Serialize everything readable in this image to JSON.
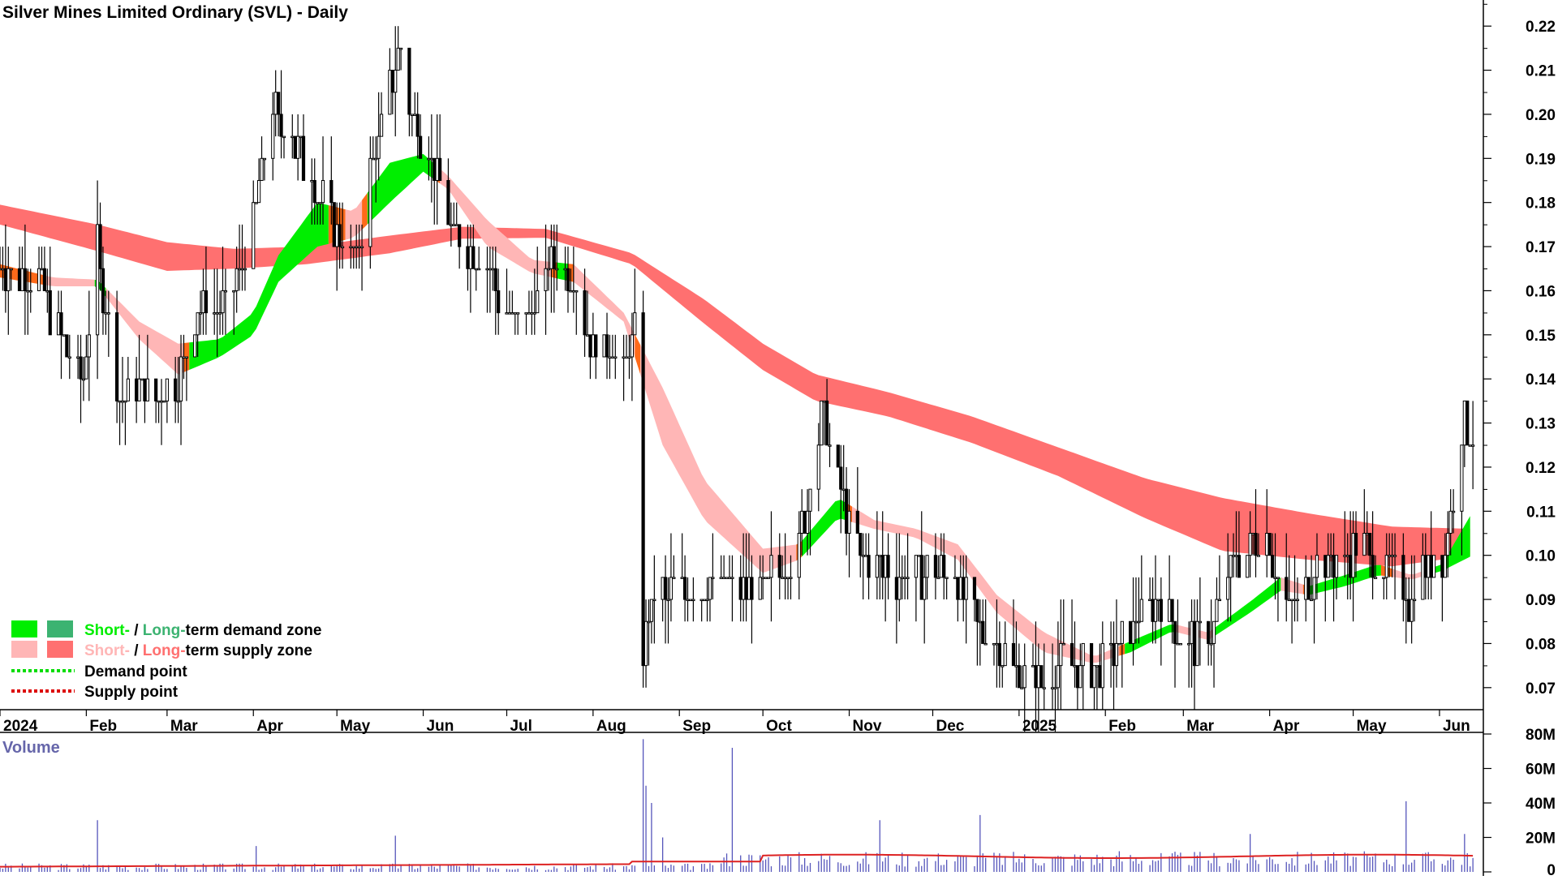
{
  "title": "Silver Mines Limited Ordinary (SVL) - Daily",
  "legend": {
    "demand_zone": {
      "short": "Short-",
      "sep": " / ",
      "long": "Long-",
      "rest": "term demand zone"
    },
    "supply_zone": {
      "short": "Short-",
      "sep": " / ",
      "long": "Long-",
      "rest": "term supply zone"
    },
    "demand_point": "Demand point",
    "supply_point": "Supply point"
  },
  "colors": {
    "short_demand": "#00ee00",
    "long_demand": "#3cb371",
    "short_supply": "#ffb6b6",
    "long_supply": "#ff7070",
    "transition_zone": "#ff6a1a",
    "demand_point": "#00dd00",
    "supply_point": "#dd0000",
    "volume_bar": "#5555bb",
    "volume_avg": "#dd2222",
    "volume_label": "#6666aa"
  },
  "chart_data": [
    {
      "type": "candlestick",
      "title": "Silver Mines Limited Ordinary (SVL) - Daily",
      "y_axis_side": "right",
      "ylim": [
        0.065,
        0.225
      ],
      "yticks": [
        "0.22",
        "0.21",
        "0.20",
        "0.19",
        "0.18",
        "0.17",
        "0.16",
        "0.15",
        "0.14",
        "0.13",
        "0.12",
        "0.11",
        "0.10",
        "0.09",
        "0.08",
        "0.07"
      ],
      "x_labels": [
        "2024",
        "Feb",
        "Mar",
        "Apr",
        "May",
        "Jun",
        "Jul",
        "Aug",
        "Sep",
        "Oct",
        "Nov",
        "Dec",
        "2025",
        "Feb",
        "Mar",
        "Apr",
        "May",
        "Jun"
      ],
      "xlim": [
        "2024-01-01",
        "2025-06-15"
      ],
      "price_anchors": [
        [
          "2024-01-01",
          0.165
        ],
        [
          "2024-01-15",
          0.163
        ],
        [
          "2024-01-25",
          0.145
        ],
        [
          "2024-01-31",
          0.14
        ],
        [
          "2024-02-05",
          0.17
        ],
        [
          "2024-02-12",
          0.138
        ],
        [
          "2024-02-26",
          0.136
        ],
        [
          "2024-03-05",
          0.14
        ],
        [
          "2024-03-12",
          0.158
        ],
        [
          "2024-03-20",
          0.155
        ],
        [
          "2024-03-28",
          0.165
        ],
        [
          "2024-04-08",
          0.2
        ],
        [
          "2024-04-15",
          0.195
        ],
        [
          "2024-04-24",
          0.183
        ],
        [
          "2024-05-01",
          0.172
        ],
        [
          "2024-05-08",
          0.168
        ],
        [
          "2024-05-14",
          0.19
        ],
        [
          "2024-05-24",
          0.215
        ],
        [
          "2024-05-28",
          0.2
        ],
        [
          "2024-06-05",
          0.188
        ],
        [
          "2024-06-12",
          0.172
        ],
        [
          "2024-06-24",
          0.165
        ],
        [
          "2024-07-01",
          0.155
        ],
        [
          "2024-07-10",
          0.155
        ],
        [
          "2024-07-18",
          0.168
        ],
        [
          "2024-07-24",
          0.165
        ],
        [
          "2024-07-30",
          0.15
        ],
        [
          "2024-08-05",
          0.148
        ],
        [
          "2024-08-12",
          0.143
        ],
        [
          "2024-08-16",
          0.15
        ],
        [
          "2024-08-19",
          0.08
        ],
        [
          "2024-08-23",
          0.09
        ],
        [
          "2024-09-02",
          0.092
        ],
        [
          "2024-09-16",
          0.093
        ],
        [
          "2024-09-30",
          0.092
        ],
        [
          "2024-10-14",
          0.102
        ],
        [
          "2024-10-22",
          0.132
        ],
        [
          "2024-10-29",
          0.115
        ],
        [
          "2024-11-05",
          0.1
        ],
        [
          "2024-11-20",
          0.095
        ],
        [
          "2024-12-02",
          0.097
        ],
        [
          "2024-12-09",
          0.095
        ],
        [
          "2024-12-16",
          0.085
        ],
        [
          "2024-12-31",
          0.075
        ],
        [
          "2025-01-08",
          0.071
        ],
        [
          "2025-01-15",
          0.077
        ],
        [
          "2025-01-24",
          0.075
        ],
        [
          "2025-01-31",
          0.074
        ],
        [
          "2025-02-10",
          0.083
        ],
        [
          "2025-02-20",
          0.09
        ],
        [
          "2025-02-28",
          0.08
        ],
        [
          "2025-03-10",
          0.081
        ],
        [
          "2025-03-20",
          0.1
        ],
        [
          "2025-03-31",
          0.104
        ],
        [
          "2025-04-08",
          0.085
        ],
        [
          "2025-04-14",
          0.095
        ],
        [
          "2025-04-25",
          0.099
        ],
        [
          "2025-05-05",
          0.101
        ],
        [
          "2025-05-14",
          0.096
        ],
        [
          "2025-05-21",
          0.09
        ],
        [
          "2025-05-28",
          0.099
        ],
        [
          "2025-06-03",
          0.1
        ],
        [
          "2025-06-06",
          0.115
        ],
        [
          "2025-06-10",
          0.13
        ],
        [
          "2025-06-13",
          0.128
        ]
      ],
      "long_term_zone": [
        [
          "2024-01-01",
          0.1795,
          0.175
        ],
        [
          "2024-02-05",
          0.175,
          0.169
        ],
        [
          "2024-03-01",
          0.171,
          0.1645
        ],
        [
          "2024-03-25",
          0.1695,
          0.165
        ],
        [
          "2024-04-20",
          0.17,
          0.166
        ],
        [
          "2024-05-20",
          0.1725,
          0.1685
        ],
        [
          "2024-06-15",
          0.1745,
          0.1718
        ],
        [
          "2024-07-15",
          0.174,
          0.172
        ],
        [
          "2024-08-15",
          0.1685,
          0.166
        ],
        [
          "2024-09-10",
          0.158,
          0.1525
        ],
        [
          "2024-10-01",
          0.148,
          0.142
        ],
        [
          "2024-10-20",
          0.141,
          0.135
        ],
        [
          "2024-11-15",
          0.137,
          0.1315
        ],
        [
          "2024-12-15",
          0.1315,
          0.1255
        ],
        [
          "2025-01-15",
          0.1245,
          0.118
        ],
        [
          "2025-02-15",
          0.1175,
          0.1085
        ],
        [
          "2025-03-15",
          0.113,
          0.101
        ],
        [
          "2025-04-15",
          0.1095,
          0.099
        ],
        [
          "2025-05-15",
          0.1065,
          0.0975
        ],
        [
          "2025-06-13",
          0.106,
          0.1
        ]
      ],
      "short_term_zone": [
        [
          "2024-01-01",
          0.166,
          0.163
        ],
        [
          "2024-01-20",
          0.163,
          0.161
        ],
        [
          "2024-02-05",
          0.1625,
          0.161
        ],
        [
          "2024-02-20",
          0.153,
          0.149
        ],
        [
          "2024-03-05",
          0.148,
          0.141
        ],
        [
          "2024-03-20",
          0.149,
          0.145
        ],
        [
          "2024-04-01",
          0.155,
          0.15
        ],
        [
          "2024-04-10",
          0.168,
          0.162
        ],
        [
          "2024-04-24",
          0.18,
          0.17
        ],
        [
          "2024-05-07",
          0.178,
          0.172
        ],
        [
          "2024-05-20",
          0.189,
          0.18
        ],
        [
          "2024-06-01",
          0.191,
          0.187
        ],
        [
          "2024-06-10",
          0.186,
          0.183
        ],
        [
          "2024-06-24",
          0.176,
          0.17
        ],
        [
          "2024-07-10",
          0.167,
          0.164
        ],
        [
          "2024-07-25",
          0.166,
          0.162
        ],
        [
          "2024-08-12",
          0.155,
          0.153
        ],
        [
          "2024-08-26",
          0.138,
          0.125
        ],
        [
          "2024-09-10",
          0.117,
          0.108
        ],
        [
          "2024-10-01",
          0.1015,
          0.096
        ],
        [
          "2024-10-14",
          0.1025,
          0.099
        ],
        [
          "2024-10-28",
          0.113,
          0.1085
        ],
        [
          "2024-11-10",
          0.108,
          0.106
        ],
        [
          "2024-11-25",
          0.106,
          0.104
        ],
        [
          "2024-12-10",
          0.1025,
          0.099
        ],
        [
          "2024-12-24",
          0.091,
          0.087
        ],
        [
          "2025-01-10",
          0.0825,
          0.078
        ],
        [
          "2025-01-28",
          0.077,
          0.0755
        ],
        [
          "2025-02-10",
          0.0805,
          0.078
        ],
        [
          "2025-02-25",
          0.0845,
          0.0828
        ],
        [
          "2025-03-10",
          0.0825,
          0.0808
        ],
        [
          "2025-03-25",
          0.0895,
          0.087
        ],
        [
          "2025-04-05",
          0.095,
          0.092
        ],
        [
          "2025-04-15",
          0.093,
          0.091
        ],
        [
          "2025-04-28",
          0.0955,
          0.093
        ],
        [
          "2025-05-10",
          0.098,
          0.0955
        ],
        [
          "2025-05-22",
          0.0955,
          0.0945
        ],
        [
          "2025-06-02",
          0.098,
          0.0965
        ],
        [
          "2025-06-13",
          0.11,
          0.1
        ]
      ]
    },
    {
      "type": "bar",
      "title": "Volume",
      "y_axis_side": "right",
      "ylim": [
        0,
        80000000
      ],
      "yticks": [
        "80M",
        "60M",
        "40M",
        "20M",
        "0"
      ],
      "average_line": "red",
      "spikes": [
        [
          "2024-02-05",
          30000000
        ],
        [
          "2024-04-02",
          15000000
        ],
        [
          "2024-05-22",
          21000000
        ],
        [
          "2024-08-19",
          77000000
        ],
        [
          "2024-08-20",
          50000000
        ],
        [
          "2024-08-22",
          40000000
        ],
        [
          "2024-08-26",
          20000000
        ],
        [
          "2024-09-20",
          72000000
        ],
        [
          "2024-11-12",
          30000000
        ],
        [
          "2024-12-18",
          33000000
        ],
        [
          "2025-02-06",
          12000000
        ],
        [
          "2025-03-25",
          22000000
        ],
        [
          "2025-05-20",
          41000000
        ],
        [
          "2025-06-10",
          22000000
        ]
      ]
    }
  ]
}
